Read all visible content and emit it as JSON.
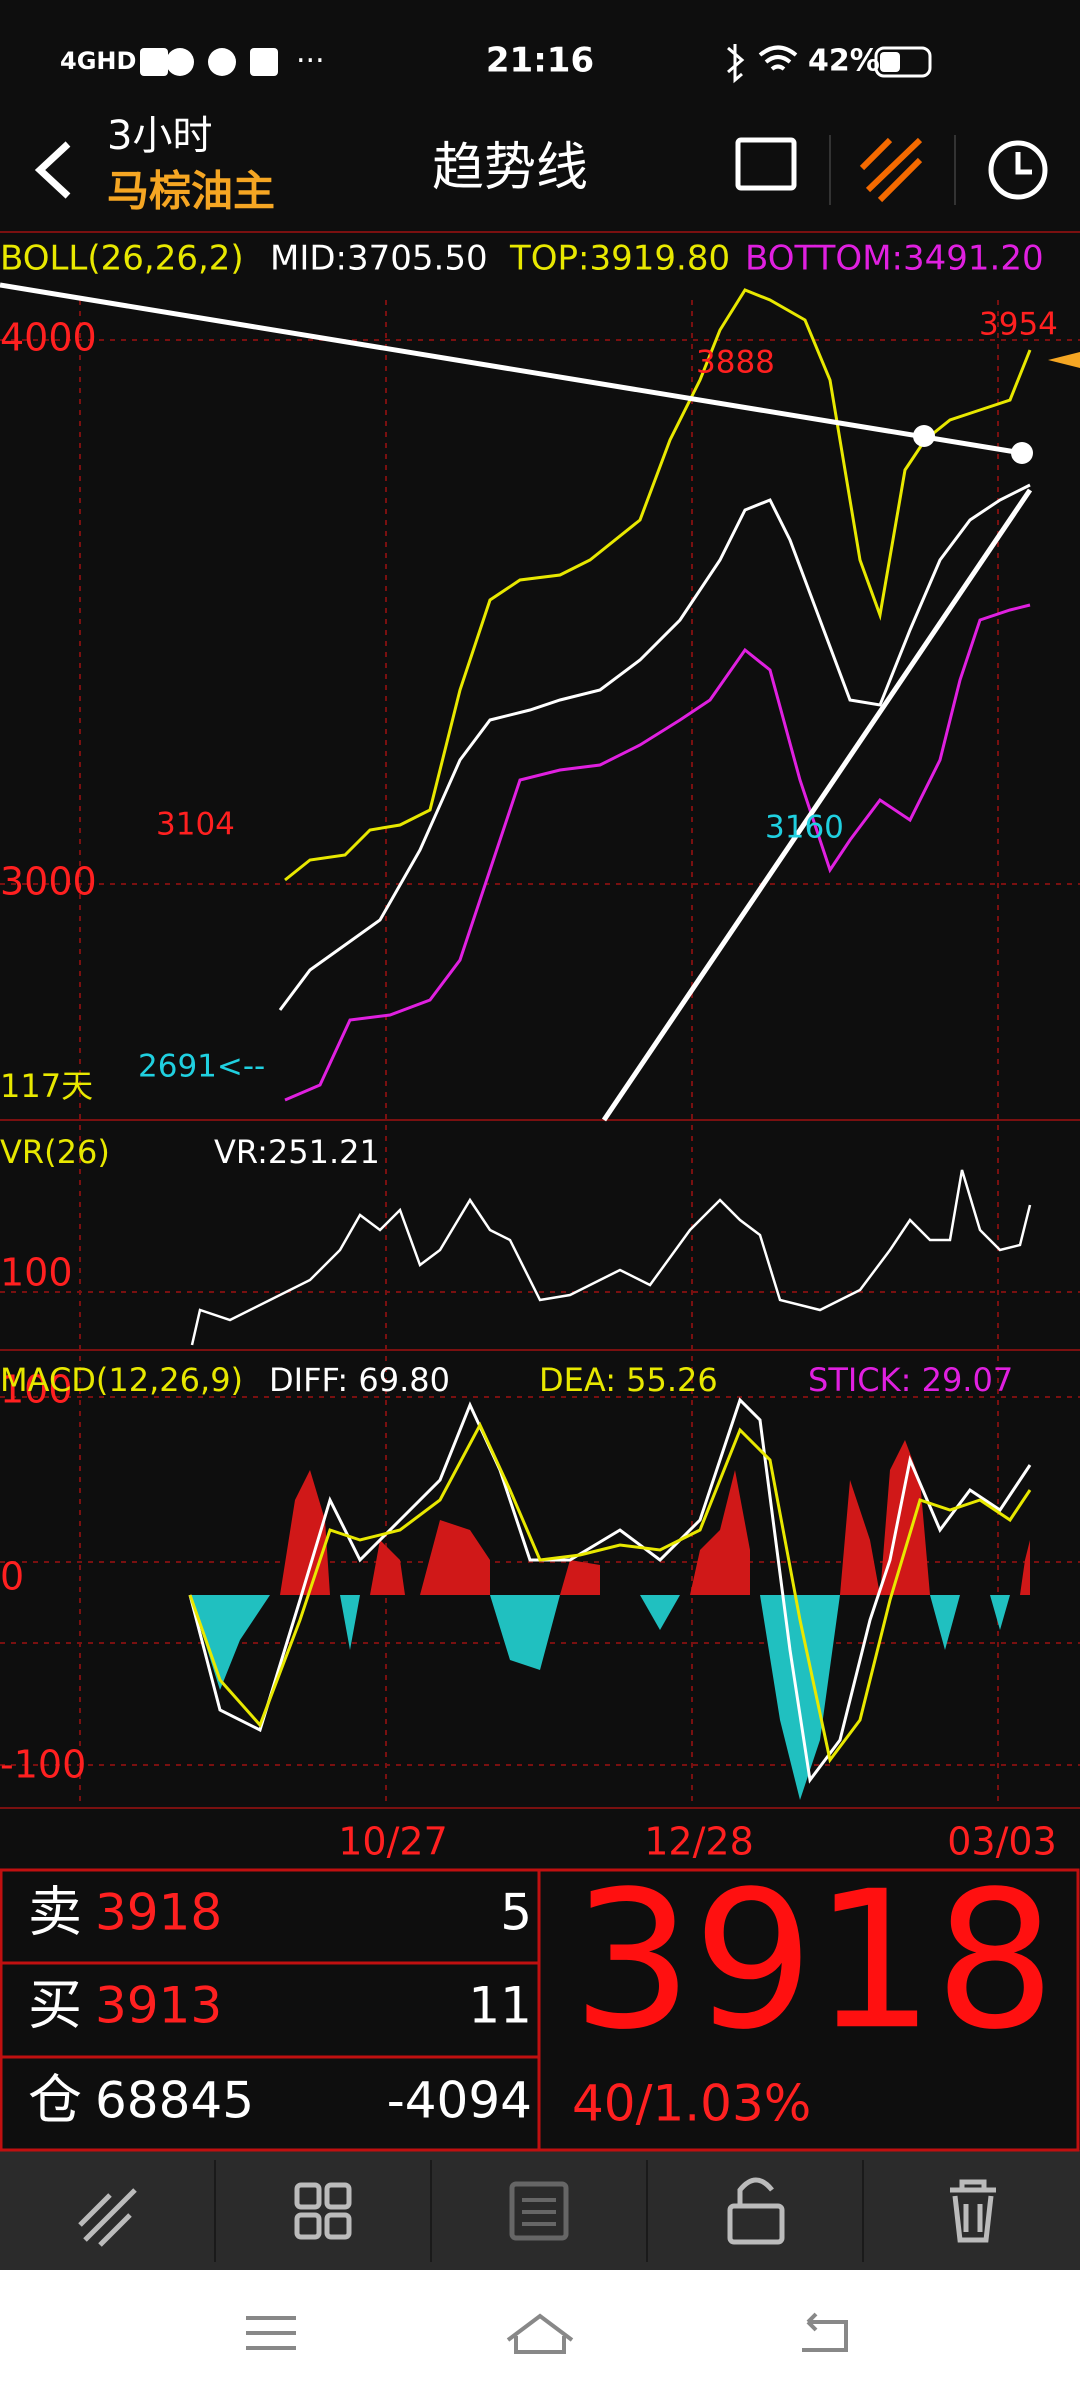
{
  "status_bar": {
    "network": "4GHD",
    "time": "21:16",
    "battery": "42%"
  },
  "header": {
    "period": "3小时",
    "symbol": "马棕油主",
    "title": "趋势线"
  },
  "main_chart": {
    "indicator": "BOLL(26,26,2)",
    "mid": "MID:3705.50",
    "top": "TOP:3919.80",
    "bottom": "BOTTOM:3491.20",
    "y_labels": [
      "4000",
      "3000"
    ],
    "annotations": [
      "3104",
      "3888",
      "3954",
      "3160",
      "2691<--"
    ],
    "span": "117天"
  },
  "vr_panel": {
    "indicator": "VR(26)",
    "value": "VR:251.21",
    "y_labels": [
      "100"
    ]
  },
  "macd_panel": {
    "indicator": "MACD(12,26,9)",
    "diff": "DIFF: 69.80",
    "dea": "DEA: 55.26",
    "stick": "STICK: 29.07",
    "y_labels": [
      "100",
      "0",
      "-100"
    ]
  },
  "x_labels": [
    "10/27",
    "12/28",
    "03/03"
  ],
  "quote": {
    "sell_label": "卖",
    "sell_price": "3918",
    "sell_volume": "5",
    "buy_label": "买",
    "buy_price": "3913",
    "buy_volume": "11",
    "oi_label": "仓",
    "open_interest": "68845",
    "oi_change": "-4094",
    "last_price": "3918",
    "change": "40/1.03%"
  }
}
